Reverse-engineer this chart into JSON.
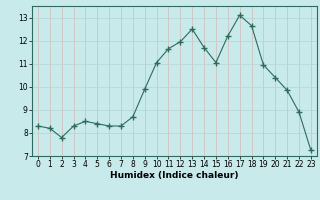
{
  "x": [
    0,
    1,
    2,
    3,
    4,
    5,
    6,
    7,
    8,
    9,
    10,
    11,
    12,
    13,
    14,
    15,
    16,
    17,
    18,
    19,
    20,
    21,
    22,
    23
  ],
  "y": [
    8.3,
    8.2,
    7.8,
    8.3,
    8.5,
    8.4,
    8.3,
    8.3,
    8.7,
    9.9,
    11.05,
    11.65,
    11.95,
    12.5,
    11.7,
    11.05,
    12.2,
    13.1,
    12.65,
    10.95,
    10.4,
    9.85,
    8.9,
    7.25
  ],
  "line_color": "#2e6b5e",
  "marker": "+",
  "marker_size": 4,
  "bg_color": "#c8eaea",
  "grid_color_h": "#b8d4d4",
  "grid_color_v": "#d4b8b8",
  "xlabel": "Humidex (Indice chaleur)",
  "xlim": [
    -0.5,
    23.5
  ],
  "ylim": [
    7,
    13.5
  ],
  "yticks": [
    7,
    8,
    9,
    10,
    11,
    12,
    13
  ],
  "xticks": [
    0,
    1,
    2,
    3,
    4,
    5,
    6,
    7,
    8,
    9,
    10,
    11,
    12,
    13,
    14,
    15,
    16,
    17,
    18,
    19,
    20,
    21,
    22,
    23
  ],
  "tick_fontsize": 5.5,
  "xlabel_fontsize": 6.5
}
